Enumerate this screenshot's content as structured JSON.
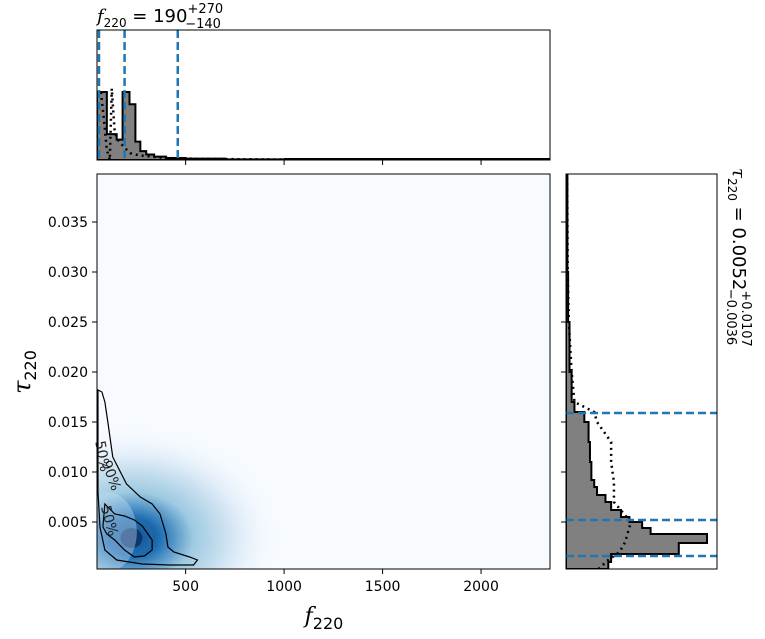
{
  "chart_data": [
    {
      "type": "histogram",
      "panel": "top-marginal",
      "title_main": "f",
      "title_sub": "220",
      "title_value": " = 190",
      "title_sup": "+270",
      "title_low": "−140",
      "xlim": [
        50,
        2350
      ],
      "bins": [
        {
          "x0": 50,
          "x1": 100,
          "value": 1.0
        },
        {
          "x0": 100,
          "x1": 150,
          "value": 0.38
        },
        {
          "x0": 150,
          "x1": 180,
          "value": 0.3
        },
        {
          "x0": 180,
          "x1": 215,
          "value": 1.0
        },
        {
          "x0": 215,
          "x1": 245,
          "value": 0.82
        },
        {
          "x0": 245,
          "x1": 270,
          "value": 0.27
        },
        {
          "x0": 270,
          "x1": 300,
          "value": 0.13
        },
        {
          "x0": 300,
          "x1": 340,
          "value": 0.08
        },
        {
          "x0": 340,
          "x1": 400,
          "value": 0.05
        },
        {
          "x0": 400,
          "x1": 500,
          "value": 0.03
        },
        {
          "x0": 500,
          "x1": 700,
          "value": 0.02
        },
        {
          "x0": 700,
          "x1": 1000,
          "value": 0.01
        }
      ],
      "prior_curve": [
        [
          70,
          1.0
        ],
        [
          85,
          0.6
        ],
        [
          100,
          0.15
        ],
        [
          115,
          0.0
        ],
        [
          125,
          1.05
        ],
        [
          140,
          0.4
        ],
        [
          160,
          0.28
        ],
        [
          190,
          0.18
        ],
        [
          220,
          0.1
        ],
        [
          260,
          0.07
        ],
        [
          320,
          0.05
        ],
        [
          400,
          0.03
        ],
        [
          600,
          0.015
        ],
        [
          1000,
          0.007
        ],
        [
          2350,
          0.002
        ]
      ],
      "quantile_lines": [
        50,
        190,
        460
      ]
    },
    {
      "type": "heatmap",
      "panel": "joint",
      "xlabel_main": "f",
      "xlabel_sub": "220",
      "ylabel_main": "τ",
      "ylabel_sub": "220",
      "xlim": [
        50,
        2350
      ],
      "ylim": [
        0.0003,
        0.0398
      ],
      "xticks": [
        500,
        1000,
        1500,
        2000
      ],
      "yticks": [
        0.005,
        0.01,
        0.015,
        0.02,
        0.025,
        0.03,
        0.035
      ],
      "ytick_labels": [
        "0.005",
        "0.010",
        "0.015",
        "0.020",
        "0.025",
        "0.030",
        "0.035"
      ],
      "contour_levels": [
        "50%",
        "90%"
      ],
      "contour_50": [
        [
          90,
          0.0068
        ],
        [
          140,
          0.0058
        ],
        [
          190,
          0.0056
        ],
        [
          240,
          0.0052
        ],
        [
          280,
          0.0046
        ],
        [
          330,
          0.0032
        ],
        [
          330,
          0.0022
        ],
        [
          290,
          0.0016
        ],
        [
          240,
          0.0015
        ],
        [
          190,
          0.0022
        ],
        [
          140,
          0.0032
        ],
        [
          100,
          0.0038
        ],
        [
          80,
          0.0045
        ]
      ],
      "contour_90": [
        [
          55,
          0.0182
        ],
        [
          75,
          0.018
        ],
        [
          90,
          0.017
        ],
        [
          105,
          0.015
        ],
        [
          130,
          0.0115
        ],
        [
          200,
          0.0088
        ],
        [
          270,
          0.0075
        ],
        [
          330,
          0.0068
        ],
        [
          370,
          0.0058
        ],
        [
          400,
          0.0038
        ],
        [
          410,
          0.0025
        ],
        [
          440,
          0.002
        ],
        [
          520,
          0.0015
        ],
        [
          560,
          0.0012
        ],
        [
          540,
          0.0007
        ],
        [
          420,
          0.0007
        ],
        [
          280,
          0.0008
        ],
        [
          150,
          0.0012
        ],
        [
          90,
          0.0022
        ],
        [
          65,
          0.0045
        ],
        [
          55,
          0.008
        ]
      ],
      "density_peak": [
        235,
        0.0035
      ]
    },
    {
      "type": "histogram",
      "panel": "right-marginal",
      "orientation": "horizontal",
      "title_main": "τ",
      "title_sub": "220",
      "title_value": " = 0.0052",
      "title_sup": "+0.0107",
      "title_low": "−0.0036",
      "ylim": [
        0.0003,
        0.0398
      ],
      "bins": [
        {
          "y0": 0.0003,
          "y1": 0.001,
          "value": 0.3
        },
        {
          "y0": 0.001,
          "y1": 0.0018,
          "value": 0.32
        },
        {
          "y0": 0.0018,
          "y1": 0.0023,
          "value": 0.8
        },
        {
          "y0": 0.0023,
          "y1": 0.0029,
          "value": 0.8
        },
        {
          "y0": 0.0029,
          "y1": 0.0038,
          "value": 1.0
        },
        {
          "y0": 0.0038,
          "y1": 0.0044,
          "value": 0.6
        },
        {
          "y0": 0.0044,
          "y1": 0.005,
          "value": 0.54
        },
        {
          "y0": 0.005,
          "y1": 0.0055,
          "value": 0.45
        },
        {
          "y0": 0.0055,
          "y1": 0.0062,
          "value": 0.39
        },
        {
          "y0": 0.0062,
          "y1": 0.007,
          "value": 0.32
        },
        {
          "y0": 0.007,
          "y1": 0.0077,
          "value": 0.28
        },
        {
          "y0": 0.0077,
          "y1": 0.0085,
          "value": 0.22
        },
        {
          "y0": 0.0085,
          "y1": 0.0092,
          "value": 0.2
        },
        {
          "y0": 0.0092,
          "y1": 0.011,
          "value": 0.18
        },
        {
          "y0": 0.011,
          "y1": 0.013,
          "value": 0.17
        },
        {
          "y0": 0.013,
          "y1": 0.015,
          "value": 0.16
        },
        {
          "y0": 0.015,
          "y1": 0.016,
          "value": 0.13
        },
        {
          "y0": 0.016,
          "y1": 0.017,
          "value": 0.06
        },
        {
          "y0": 0.017,
          "y1": 0.02,
          "value": 0.04
        },
        {
          "y0": 0.02,
          "y1": 0.025,
          "value": 0.025
        },
        {
          "y0": 0.025,
          "y1": 0.03,
          "value": 0.015
        },
        {
          "y0": 0.03,
          "y1": 0.0398,
          "value": 0.01
        }
      ],
      "prior_curve": [
        [
          0.0003,
          0.23
        ],
        [
          0.0012,
          0.3
        ],
        [
          0.002,
          0.38
        ],
        [
          0.003,
          0.42
        ],
        [
          0.004,
          0.44
        ],
        [
          0.005,
          0.46
        ],
        [
          0.007,
          0.34
        ],
        [
          0.009,
          0.34
        ],
        [
          0.011,
          0.32
        ],
        [
          0.013,
          0.32
        ],
        [
          0.015,
          0.22
        ],
        [
          0.016,
          0.2
        ],
        [
          0.017,
          0.06
        ],
        [
          0.02,
          0.04
        ],
        [
          0.025,
          0.02
        ],
        [
          0.03,
          0.012
        ],
        [
          0.0398,
          0.008
        ]
      ],
      "quantile_lines": [
        0.0016,
        0.0052,
        0.0159
      ]
    }
  ],
  "colors": {
    "hist_fill": "#808080",
    "quantile_line": "#1f77b4",
    "heatmap_low": "#f7fbff",
    "heatmap_high": "#08306b"
  }
}
